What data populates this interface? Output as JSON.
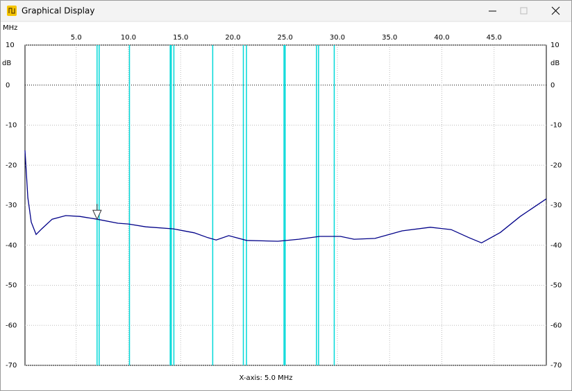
{
  "window": {
    "title": "Graphical Display"
  },
  "chart_data": {
    "type": "line",
    "x_unit": "MHz",
    "y_unit": "dB",
    "x_axis_label": "X-axis: 5.0 MHz",
    "xlim": [
      0.1,
      50
    ],
    "xticks": [
      {
        "value": 5,
        "label": "5.0"
      },
      {
        "value": 10,
        "label": "10.0"
      },
      {
        "value": 15,
        "label": "15.0"
      },
      {
        "value": 20,
        "label": "20.0"
      },
      {
        "value": 25,
        "label": "25.0"
      },
      {
        "value": 30,
        "label": "30.0"
      },
      {
        "value": 35,
        "label": "35.0"
      },
      {
        "value": 40,
        "label": "40.0"
      },
      {
        "value": 45,
        "label": "45.0"
      }
    ],
    "ylim": [
      -70,
      10
    ],
    "yticks": [
      10,
      0,
      -10,
      -20,
      -30,
      -40,
      -50,
      -60,
      -70
    ],
    "grid": true,
    "x": [
      0.1,
      0.37,
      0.7,
      1.16,
      1.7,
      2.7,
      4.0,
      5.35,
      7.0,
      9.0,
      10.0,
      11.66,
      14.3,
      16.3,
      17.6,
      18.4,
      19.6,
      21.3,
      24.3,
      26.3,
      28.3,
      30.3,
      31.6,
      33.6,
      36.2,
      38.9,
      40.9,
      42.6,
      43.8,
      45.6,
      47.5,
      50.0
    ],
    "values": [
      -16.3,
      -28.1,
      -34.2,
      -37.3,
      -35.9,
      -33.5,
      -32.6,
      -32.8,
      -33.5,
      -34.5,
      -34.7,
      -35.4,
      -35.9,
      -36.9,
      -38.1,
      -38.7,
      -37.6,
      -38.8,
      -39.0,
      -38.5,
      -37.8,
      -37.8,
      -38.5,
      -38.3,
      -36.4,
      -35.5,
      -36.1,
      -38.1,
      -39.4,
      -36.8,
      -32.8,
      -28.4
    ],
    "color": "#000088",
    "band_lines": {
      "color": "#00d8d8",
      "x": [
        7.0,
        7.2,
        10.1,
        14.0,
        14.1,
        14.35,
        18.068,
        21.0,
        21.3,
        24.89,
        25.0,
        28.0,
        28.2,
        29.7
      ]
    },
    "cursor": 7.0
  }
}
